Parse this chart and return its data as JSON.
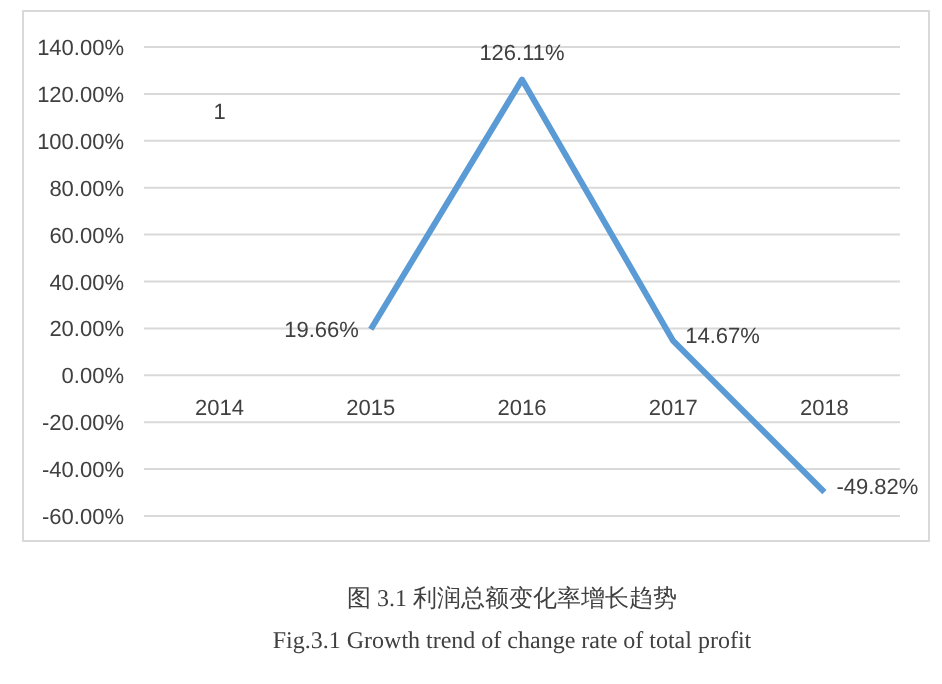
{
  "chart_data": {
    "type": "line",
    "categories": [
      "2014",
      "2015",
      "2016",
      "2017",
      "2018"
    ],
    "series": [
      {
        "color": "#5b9bd5",
        "values": [
          null,
          19.66,
          126.11,
          14.67,
          -49.82
        ],
        "value_labels": [
          null,
          "19.66%",
          "126.11%",
          "14.67%",
          "-49.82%"
        ]
      }
    ],
    "ylim": [
      -60,
      140
    ],
    "yticks": [
      {
        "value": -60,
        "label": "-60.00%"
      },
      {
        "value": -40,
        "label": "-40.00%"
      },
      {
        "value": -20,
        "label": "-20.00%"
      },
      {
        "value": 0,
        "label": "0.00%"
      },
      {
        "value": 20,
        "label": "20.00%"
      },
      {
        "value": 40,
        "label": "40.00%"
      },
      {
        "value": 60,
        "label": "60.00%"
      },
      {
        "value": 80,
        "label": "80.00%"
      },
      {
        "value": 100,
        "label": "100.00%"
      },
      {
        "value": 120,
        "label": "120.00%"
      },
      {
        "value": 140,
        "label": "140.00%"
      }
    ],
    "grid": "y",
    "marker": "none",
    "line_style": "solid",
    "annotations": [
      "1",
      "图 3.1  利润总额变化率增长趋势",
      "Fig.3.1 Growth trend of change rate of total profit"
    ]
  }
}
